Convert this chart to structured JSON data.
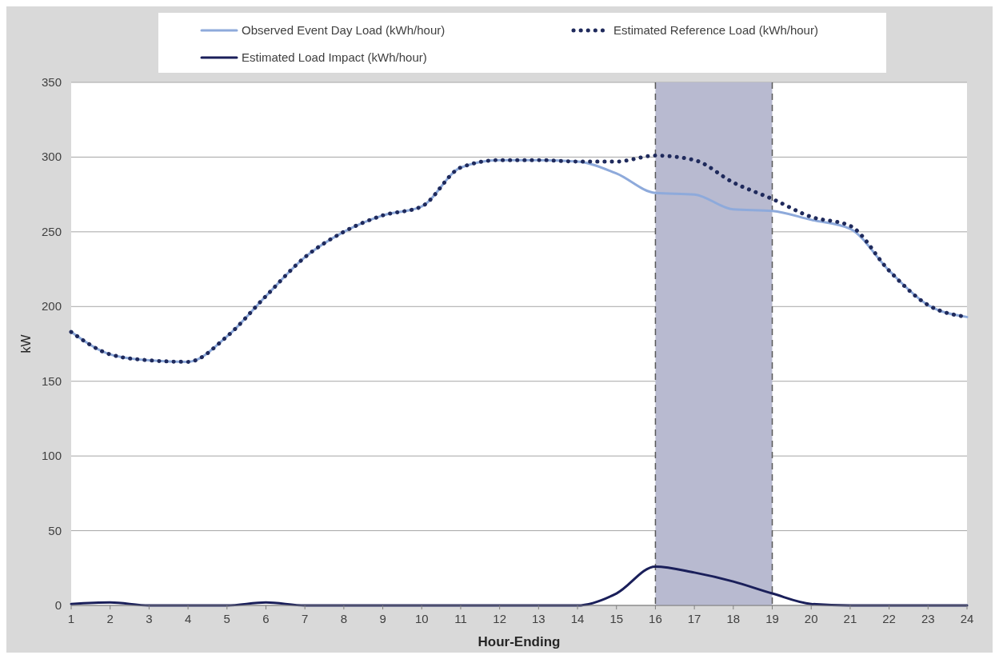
{
  "chart_data": {
    "type": "line",
    "xlabel": "Hour-Ending",
    "ylabel": "kW",
    "x": [
      1,
      2,
      3,
      4,
      5,
      6,
      7,
      8,
      9,
      10,
      11,
      12,
      13,
      14,
      15,
      16,
      17,
      18,
      19,
      20,
      21,
      22,
      23,
      24
    ],
    "series": [
      {
        "name": "Observed Event Day Load (kWh/hour)",
        "color": "#8eaadb",
        "line_style": "solid",
        "values": [
          183,
          168,
          164,
          163,
          180,
          207,
          233,
          250,
          261,
          267,
          293,
          298,
          298,
          297,
          289,
          276,
          275,
          265,
          264,
          258,
          252,
          224,
          201,
          193
        ]
      },
      {
        "name": "Estimated Reference Load (kWh/hour)",
        "color": "#1f2a5c",
        "line_style": "dotted",
        "values": [
          183,
          168,
          164,
          163,
          180,
          207,
          233,
          250,
          261,
          267,
          293,
          298,
          298,
          297,
          297,
          301,
          298,
          283,
          272,
          260,
          254,
          224,
          201,
          193
        ]
      },
      {
        "name": "Estimated Load Impact (kWh/hour)",
        "color": "#1a1f5a",
        "line_style": "solid",
        "values": [
          1,
          2,
          0,
          0,
          0,
          2,
          0,
          0,
          0,
          0,
          0,
          0,
          0,
          0,
          8,
          26,
          22,
          16,
          8,
          1,
          0,
          0,
          0,
          0
        ]
      }
    ],
    "xlim": [
      1,
      24
    ],
    "xticks": [
      1,
      2,
      3,
      4,
      5,
      6,
      7,
      8,
      9,
      10,
      11,
      12,
      13,
      14,
      15,
      16,
      17,
      18,
      19,
      20,
      21,
      22,
      23,
      24
    ],
    "ylim": [
      0,
      350
    ],
    "yticks": [
      0,
      50,
      100,
      150,
      200,
      250,
      300,
      350
    ],
    "grid": "y",
    "legend": "top",
    "bands": [
      {
        "axis": "x",
        "from": 16,
        "to": 19,
        "color": "#b8bad0"
      }
    ],
    "ref_lines": [
      {
        "axis": "x",
        "value": 16,
        "color": "#595959",
        "line_style": "dashed"
      },
      {
        "axis": "x",
        "value": 19,
        "color": "#595959",
        "line_style": "dashed"
      }
    ]
  }
}
